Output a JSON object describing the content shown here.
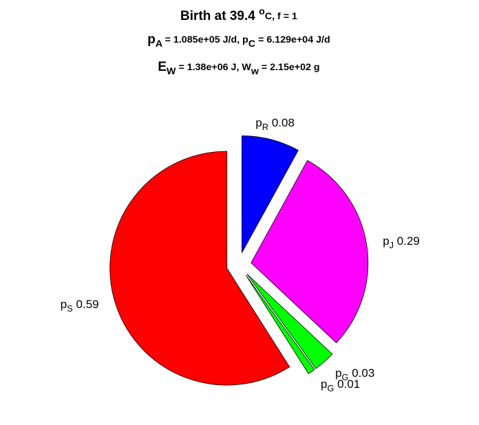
{
  "chart_data": {
    "type": "pie",
    "title": [
      "Birth at 39.4 ^oC, f = 1",
      "p_A = 1.085e+05 J/d, p_C = 6.129e+04 J/d",
      "E_W = 1.38e+06 J, W_w = 2.15e+02 g"
    ],
    "categories": [
      "p_R",
      "p_J",
      "p_G",
      "p_G",
      "p_S"
    ],
    "values": [
      0.08,
      0.29,
      0.03,
      0.01,
      0.59
    ],
    "colors": [
      "#0000ff",
      "#ff00ff",
      "#00ff00",
      "#00ff00",
      "#ff0000"
    ],
    "exploded": true
  }
}
